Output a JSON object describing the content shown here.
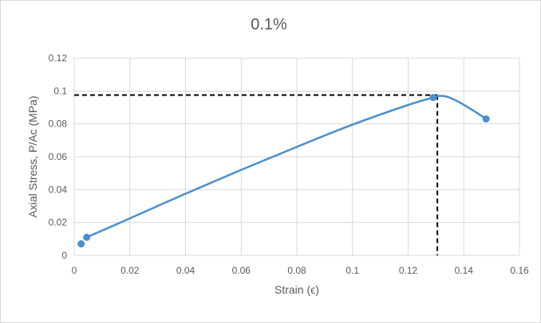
{
  "chart_data": {
    "type": "scatter",
    "title": "0.1%",
    "xlabel": "Strain (ϵ)",
    "ylabel": "Axial Stress, P/Ac (MPa)",
    "xlim": [
      0,
      0.16
    ],
    "ylim": [
      0,
      0.12
    ],
    "x_ticks": [
      0,
      0.02,
      0.04,
      0.06,
      0.08,
      0.1,
      0.12,
      0.14,
      0.16
    ],
    "x_tick_labels": [
      "0",
      "0.02",
      "0.04",
      "0.06",
      "0.08",
      "0.1",
      "0.12",
      "0.14",
      "0.16"
    ],
    "y_ticks": [
      0,
      0.02,
      0.04,
      0.06,
      0.08,
      0.1,
      0.12
    ],
    "y_tick_labels": [
      "0",
      "0.02",
      "0.04",
      "0.06",
      "0.08",
      "0.1",
      "0.12"
    ],
    "grid": true,
    "series": [
      {
        "color": "#4a8fcc",
        "markers": true,
        "smooth": true,
        "x": [
          0.0025,
          0.0045,
          0.129,
          0.148
        ],
        "y": [
          0.007,
          0.011,
          0.096,
          0.083
        ],
        "curve_x": [
          0.0045,
          0.02,
          0.04,
          0.06,
          0.08,
          0.1,
          0.12,
          0.129,
          0.131,
          0.134,
          0.138,
          0.143,
          0.148
        ],
        "curve_y": [
          0.011,
          0.0225,
          0.0375,
          0.052,
          0.066,
          0.0795,
          0.0915,
          0.096,
          0.097,
          0.0965,
          0.0935,
          0.0885,
          0.083
        ]
      }
    ],
    "reference_lines": {
      "style": "dashed",
      "color": "#000000",
      "point": {
        "x": 0.1305,
        "y": 0.0975
      }
    }
  }
}
